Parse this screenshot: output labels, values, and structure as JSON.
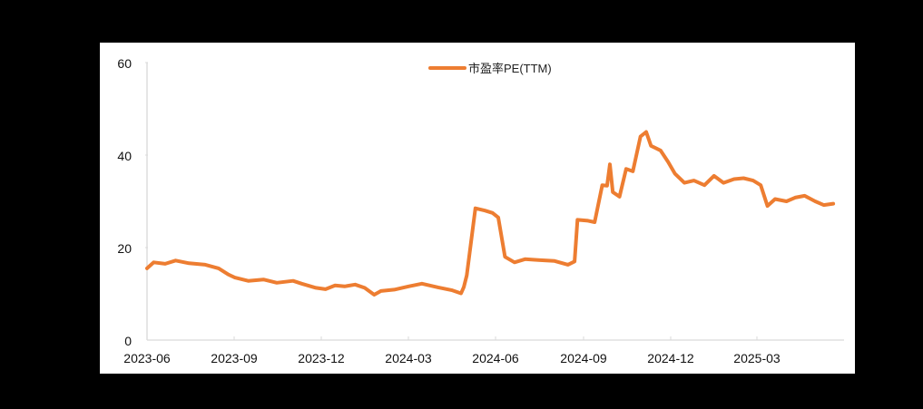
{
  "chart_data": {
    "type": "line",
    "title": "",
    "xlabel": "",
    "ylabel": "",
    "ylim": [
      0,
      60
    ],
    "yticks": [
      "0",
      "20",
      "40",
      "60"
    ],
    "xticks": [
      "2023-06",
      "2023-09",
      "2023-12",
      "2024-03",
      "2024-06",
      "2024-09",
      "2024-12",
      "2025-03"
    ],
    "grid": false,
    "legend_position": "top-center",
    "series": [
      {
        "name": "市盈率PE(TTM)",
        "color": "#ED7D31",
        "x": [
          "2023-06-01",
          "2023-06-08",
          "2023-06-20",
          "2023-07-01",
          "2023-07-15",
          "2023-08-01",
          "2023-08-15",
          "2023-08-25",
          "2023-09-01",
          "2023-09-15",
          "2023-10-01",
          "2023-10-15",
          "2023-11-01",
          "2023-11-10",
          "2023-11-25",
          "2023-12-05",
          "2023-12-15",
          "2023-12-25",
          "2024-01-05",
          "2024-01-15",
          "2024-01-25",
          "2024-02-01",
          "2024-02-15",
          "2024-03-01",
          "2024-03-15",
          "2024-04-01",
          "2024-04-15",
          "2024-04-25",
          "2024-04-28",
          "2024-05-01",
          "2024-05-10",
          "2024-05-20",
          "2024-05-28",
          "2024-06-03",
          "2024-06-10",
          "2024-06-20",
          "2024-07-01",
          "2024-07-15",
          "2024-08-01",
          "2024-08-15",
          "2024-08-22",
          "2024-08-25",
          "2024-09-05",
          "2024-09-12",
          "2024-09-20",
          "2024-09-25",
          "2024-09-28",
          "2024-10-01",
          "2024-10-08",
          "2024-10-15",
          "2024-10-22",
          "2024-10-30",
          "2024-11-05",
          "2024-11-10",
          "2024-11-15",
          "2024-11-20",
          "2024-11-28",
          "2024-12-05",
          "2024-12-15",
          "2024-12-25",
          "2025-01-05",
          "2025-01-15",
          "2025-01-25",
          "2025-02-05",
          "2025-02-15",
          "2025-02-25",
          "2025-03-05",
          "2025-03-12",
          "2025-03-20",
          "2025-04-01",
          "2025-04-10",
          "2025-04-20",
          "2025-05-01",
          "2025-05-10",
          "2025-05-20"
        ],
        "values": [
          15.5,
          16.8,
          16.5,
          17.2,
          16.6,
          16.3,
          15.5,
          14.2,
          13.5,
          12.8,
          13.1,
          12.4,
          12.8,
          12.2,
          11.3,
          11.0,
          11.8,
          11.6,
          12.0,
          11.3,
          9.8,
          10.6,
          10.9,
          11.6,
          12.2,
          11.4,
          10.8,
          10.1,
          11.5,
          14.0,
          28.5,
          28.0,
          27.5,
          26.5,
          18.0,
          16.8,
          17.5,
          17.3,
          17.1,
          16.3,
          17.0,
          26.0,
          25.8,
          25.5,
          33.5,
          33.4,
          38.0,
          32.0,
          31.0,
          37.0,
          36.5,
          44.0,
          45.0,
          42.0,
          41.5,
          41.0,
          38.5,
          36.0,
          34.0,
          34.5,
          33.5,
          35.5,
          34.0,
          34.8,
          35.0,
          34.5,
          33.5,
          29.0,
          30.5,
          30.0,
          30.8,
          31.2,
          30.0,
          29.2,
          29.5
        ]
      }
    ]
  },
  "legend": {
    "label": "市盈率PE(TTM)"
  },
  "axis": {
    "y_labels": [
      "60",
      "40",
      "20",
      "0"
    ],
    "x_labels": [
      "2023-06",
      "2023-09",
      "2023-12",
      "2024-03",
      "2024-06",
      "2024-09",
      "2024-12",
      "2025-03"
    ]
  }
}
